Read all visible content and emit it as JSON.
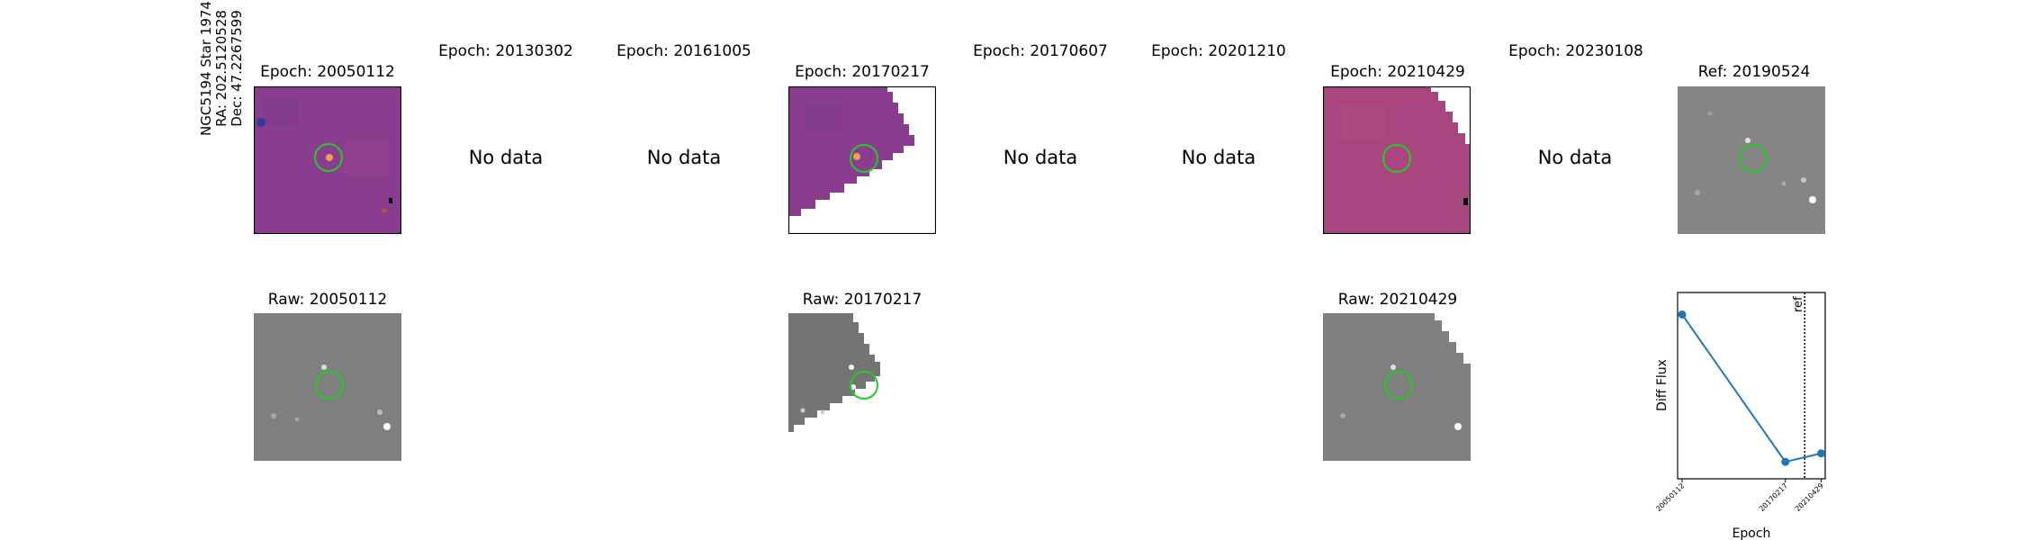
{
  "star": {
    "name": "NGC5194 Star 1974",
    "ra": "RA: 202.5120528",
    "dec": "Dec: 47.2267599"
  },
  "top_titles": [
    "Epoch: 20050112",
    "Epoch: 20130302",
    "Epoch: 20161005",
    "Epoch: 20170217",
    "Epoch: 20170607",
    "Epoch: 20201210",
    "Epoch: 20210429",
    "Epoch: 20230108",
    "Ref: 20190524"
  ],
  "no_data_label": "No data",
  "bottom_titles": [
    "Raw: 20050112",
    "Raw: 20170217",
    "Raw: 20210429"
  ],
  "colors": {
    "diff_bg": "#8a3c8f",
    "diff_bg_alt": "#a8477f",
    "raw_bg": "#7f7f7f",
    "ref_bg": "#858585",
    "circle": "#22cc22",
    "line": "#1f77b4"
  },
  "chart_data": {
    "type": "line",
    "ylabel": "Diff Flux",
    "xlabel": "Epoch",
    "categories": [
      "20050112",
      "20170217",
      "20210429"
    ],
    "x": [
      2005.03,
      2017.13,
      2021.33
    ],
    "series": [
      {
        "values": [
          0.92,
          0.05,
          0.1
        ]
      }
    ],
    "ref_line": {
      "x": 2019.4,
      "label": "ref"
    },
    "yticks": "none"
  }
}
